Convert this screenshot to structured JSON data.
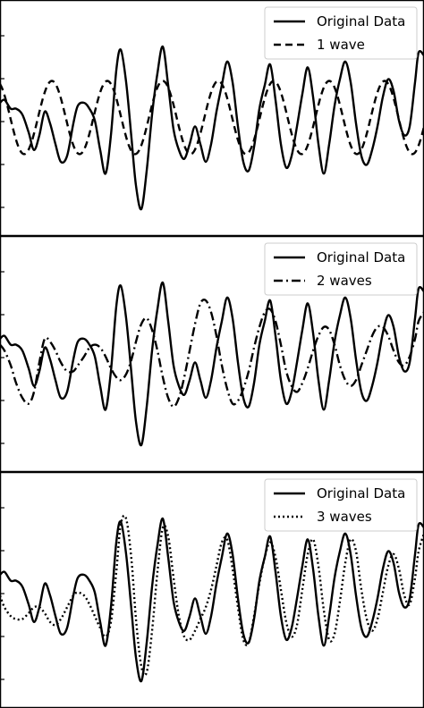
{
  "chart_data": [
    {
      "type": "line",
      "legend_position": "top-right",
      "series": [
        {
          "name": "Original Data",
          "style": "solid",
          "x": [
            0,
            5,
            12,
            18,
            25,
            32,
            38,
            44,
            50,
            56,
            62,
            68,
            75,
            82,
            87,
            94,
            100,
            106,
            112,
            118,
            124,
            130,
            135,
            141,
            147,
            152,
            158,
            164,
            170,
            176,
            182,
            188,
            194,
            200,
            206,
            212,
            218,
            224,
            230,
            236,
            242,
            248,
            254,
            260,
            266,
            272,
            278,
            284,
            290,
            296,
            302,
            308,
            314,
            320,
            326,
            332,
            338,
            344,
            350,
            356,
            362,
            368,
            374,
            380,
            386,
            392,
            398,
            404,
            410,
            416,
            422,
            428,
            434,
            440,
            446,
            452,
            458,
            464,
            468,
            474
          ],
          "values": [
            0.25,
            0.3,
            0.15,
            0.15,
            0.05,
            -0.25,
            -0.55,
            -0.3,
            0.1,
            -0.1,
            -0.45,
            -0.75,
            -0.65,
            -0.1,
            0.2,
            0.25,
            0.15,
            -0.05,
            -0.55,
            -0.95,
            -0.3,
            0.8,
            1.15,
            0.6,
            -0.35,
            -1.15,
            -1.55,
            -0.9,
            0.05,
            0.75,
            1.2,
            0.55,
            -0.2,
            -0.55,
            -0.7,
            -0.45,
            -0.15,
            -0.45,
            -0.75,
            -0.45,
            0.1,
            0.55,
            0.95,
            0.6,
            -0.15,
            -0.75,
            -0.9,
            -0.5,
            0.15,
            0.55,
            0.9,
            0.3,
            -0.45,
            -0.85,
            -0.65,
            -0.15,
            0.4,
            0.85,
            0.35,
            -0.45,
            -0.95,
            -0.45,
            0.2,
            0.65,
            0.95,
            0.6,
            -0.1,
            -0.65,
            -0.8,
            -0.55,
            -0.15,
            0.35,
            0.65,
            0.45,
            -0.05,
            -0.3,
            -0.15,
            0.6,
            1.1,
            1.05
          ]
        },
        {
          "name": "1 wave",
          "style": "dashed",
          "amplitude": 0.62,
          "period": 62,
          "phase": 58,
          "x_start": 0,
          "x_end": 474
        }
      ],
      "ylim": [
        -1.9,
        1.9
      ]
    },
    {
      "type": "line",
      "legend_position": "top-right",
      "series": [
        {
          "name": "Original Data",
          "style": "solid",
          "x": [
            0,
            5,
            12,
            18,
            25,
            32,
            38,
            44,
            50,
            56,
            62,
            68,
            75,
            82,
            87,
            94,
            100,
            106,
            112,
            118,
            124,
            130,
            135,
            141,
            147,
            152,
            158,
            164,
            170,
            176,
            182,
            188,
            194,
            200,
            206,
            212,
            218,
            224,
            230,
            236,
            242,
            248,
            254,
            260,
            266,
            272,
            278,
            284,
            290,
            296,
            302,
            308,
            314,
            320,
            326,
            332,
            338,
            344,
            350,
            356,
            362,
            368,
            374,
            380,
            386,
            392,
            398,
            404,
            410,
            416,
            422,
            428,
            434,
            440,
            446,
            452,
            458,
            464,
            468,
            474
          ],
          "values": [
            0.25,
            0.3,
            0.15,
            0.15,
            0.05,
            -0.25,
            -0.55,
            -0.3,
            0.1,
            -0.1,
            -0.45,
            -0.75,
            -0.65,
            -0.1,
            0.2,
            0.25,
            0.15,
            -0.05,
            -0.55,
            -0.95,
            -0.3,
            0.8,
            1.15,
            0.6,
            -0.35,
            -1.15,
            -1.55,
            -0.9,
            0.05,
            0.75,
            1.2,
            0.55,
            -0.2,
            -0.55,
            -0.7,
            -0.45,
            -0.15,
            -0.45,
            -0.75,
            -0.45,
            0.1,
            0.55,
            0.95,
            0.6,
            -0.15,
            -0.75,
            -0.9,
            -0.5,
            0.15,
            0.55,
            0.9,
            0.3,
            -0.45,
            -0.85,
            -0.65,
            -0.15,
            0.4,
            0.85,
            0.35,
            -0.45,
            -0.95,
            -0.45,
            0.2,
            0.65,
            0.95,
            0.6,
            -0.1,
            -0.65,
            -0.8,
            -0.55,
            -0.15,
            0.35,
            0.65,
            0.45,
            -0.05,
            -0.3,
            -0.15,
            0.6,
            1.1,
            1.05
          ]
        },
        {
          "name": "2 waves",
          "style": "dashdot",
          "x": [
            0,
            5,
            12,
            18,
            25,
            32,
            38,
            44,
            50,
            56,
            62,
            68,
            75,
            82,
            87,
            94,
            100,
            106,
            112,
            118,
            124,
            130,
            135,
            141,
            147,
            152,
            158,
            164,
            170,
            176,
            182,
            188,
            194,
            200,
            206,
            212,
            218,
            224,
            230,
            236,
            242,
            248,
            254,
            260,
            266,
            272,
            278,
            284,
            290,
            296,
            302,
            308,
            314,
            320,
            326,
            332,
            338,
            344,
            350,
            356,
            362,
            368,
            374,
            380,
            386,
            392,
            398,
            404,
            410,
            416,
            422,
            428,
            434,
            440,
            446,
            452,
            458,
            464,
            468,
            474
          ],
          "values": [
            0.15,
            0.05,
            -0.2,
            -0.5,
            -0.75,
            -0.85,
            -0.65,
            -0.15,
            0.25,
            0.2,
            0.05,
            -0.15,
            -0.3,
            -0.3,
            -0.2,
            -0.05,
            0.1,
            0.15,
            0.1,
            -0.05,
            -0.25,
            -0.4,
            -0.45,
            -0.35,
            -0.1,
            0.2,
            0.5,
            0.6,
            0.4,
            0.05,
            -0.4,
            -0.75,
            -0.9,
            -0.75,
            -0.4,
            0.05,
            0.5,
            0.85,
            0.9,
            0.7,
            0.3,
            -0.2,
            -0.6,
            -0.85,
            -0.8,
            -0.6,
            -0.3,
            0.1,
            0.45,
            0.7,
            0.75,
            0.55,
            0.15,
            -0.3,
            -0.55,
            -0.65,
            -0.5,
            -0.25,
            0.05,
            0.3,
            0.45,
            0.4,
            0.15,
            -0.2,
            -0.45,
            -0.55,
            -0.45,
            -0.2,
            0.05,
            0.3,
            0.45,
            0.45,
            0.3,
            0.05,
            -0.15,
            -0.2,
            -0.05,
            0.25,
            0.55,
            0.7
          ]
        }
      ],
      "ylim": [
        -1.9,
        1.9
      ]
    },
    {
      "type": "line",
      "legend_position": "top-right",
      "series": [
        {
          "name": "Original Data",
          "style": "solid",
          "x": [
            0,
            5,
            12,
            18,
            25,
            32,
            38,
            44,
            50,
            56,
            62,
            68,
            75,
            82,
            87,
            94,
            100,
            106,
            112,
            118,
            124,
            130,
            135,
            141,
            147,
            152,
            158,
            164,
            170,
            176,
            182,
            188,
            194,
            200,
            206,
            212,
            218,
            224,
            230,
            236,
            242,
            248,
            254,
            260,
            266,
            272,
            278,
            284,
            290,
            296,
            302,
            308,
            314,
            320,
            326,
            332,
            338,
            344,
            350,
            356,
            362,
            368,
            374,
            380,
            386,
            392,
            398,
            404,
            410,
            416,
            422,
            428,
            434,
            440,
            446,
            452,
            458,
            464,
            468,
            474
          ],
          "values": [
            0.25,
            0.3,
            0.15,
            0.15,
            0.05,
            -0.25,
            -0.55,
            -0.3,
            0.1,
            -0.1,
            -0.45,
            -0.75,
            -0.65,
            -0.1,
            0.2,
            0.25,
            0.15,
            -0.05,
            -0.55,
            -0.95,
            -0.3,
            0.8,
            1.15,
            0.6,
            -0.35,
            -1.15,
            -1.55,
            -0.9,
            0.05,
            0.75,
            1.2,
            0.55,
            -0.2,
            -0.55,
            -0.7,
            -0.45,
            -0.15,
            -0.45,
            -0.75,
            -0.45,
            0.1,
            0.55,
            0.95,
            0.6,
            -0.15,
            -0.75,
            -0.9,
            -0.5,
            0.15,
            0.55,
            0.9,
            0.3,
            -0.45,
            -0.85,
            -0.65,
            -0.15,
            0.4,
            0.85,
            0.35,
            -0.45,
            -0.95,
            -0.45,
            0.2,
            0.65,
            0.95,
            0.6,
            -0.1,
            -0.65,
            -0.8,
            -0.55,
            -0.15,
            0.35,
            0.65,
            0.45,
            -0.05,
            -0.3,
            -0.15,
            0.6,
            1.1,
            1.05
          ]
        },
        {
          "name": "3 waves",
          "style": "dotted",
          "x": [
            0,
            5,
            12,
            18,
            25,
            32,
            38,
            44,
            50,
            56,
            62,
            68,
            75,
            82,
            87,
            94,
            100,
            106,
            112,
            118,
            124,
            130,
            135,
            141,
            147,
            152,
            158,
            164,
            170,
            176,
            182,
            188,
            194,
            200,
            206,
            212,
            218,
            224,
            230,
            236,
            242,
            248,
            254,
            260,
            266,
            272,
            278,
            284,
            290,
            296,
            302,
            308,
            314,
            320,
            326,
            332,
            338,
            344,
            350,
            356,
            362,
            368,
            374,
            380,
            386,
            392,
            398,
            404,
            410,
            416,
            422,
            428,
            434,
            440,
            446,
            452,
            458,
            464,
            468,
            474
          ],
          "values": [
            -0.1,
            -0.3,
            -0.45,
            -0.5,
            -0.5,
            -0.4,
            -0.3,
            -0.3,
            -0.4,
            -0.55,
            -0.6,
            -0.5,
            -0.3,
            -0.1,
            -0.05,
            -0.1,
            -0.25,
            -0.45,
            -0.65,
            -0.8,
            -0.55,
            0.3,
            1.1,
            1.2,
            0.5,
            -0.5,
            -1.3,
            -1.4,
            -0.7,
            0.3,
            1.05,
            0.9,
            0.2,
            -0.45,
            -0.8,
            -0.85,
            -0.7,
            -0.5,
            -0.3,
            0.0,
            0.4,
            0.8,
            0.85,
            0.35,
            -0.3,
            -0.85,
            -0.9,
            -0.45,
            0.1,
            0.55,
            0.8,
            0.55,
            0.0,
            -0.55,
            -0.8,
            -0.6,
            0.0,
            0.6,
            0.85,
            0.4,
            -0.35,
            -0.85,
            -0.75,
            -0.2,
            0.45,
            0.85,
            0.65,
            0.0,
            -0.5,
            -0.7,
            -0.5,
            -0.05,
            0.4,
            0.6,
            0.35,
            -0.1,
            -0.25,
            0.2,
            0.65,
            0.95
          ]
        }
      ],
      "ylim": [
        -1.9,
        1.9
      ]
    }
  ]
}
